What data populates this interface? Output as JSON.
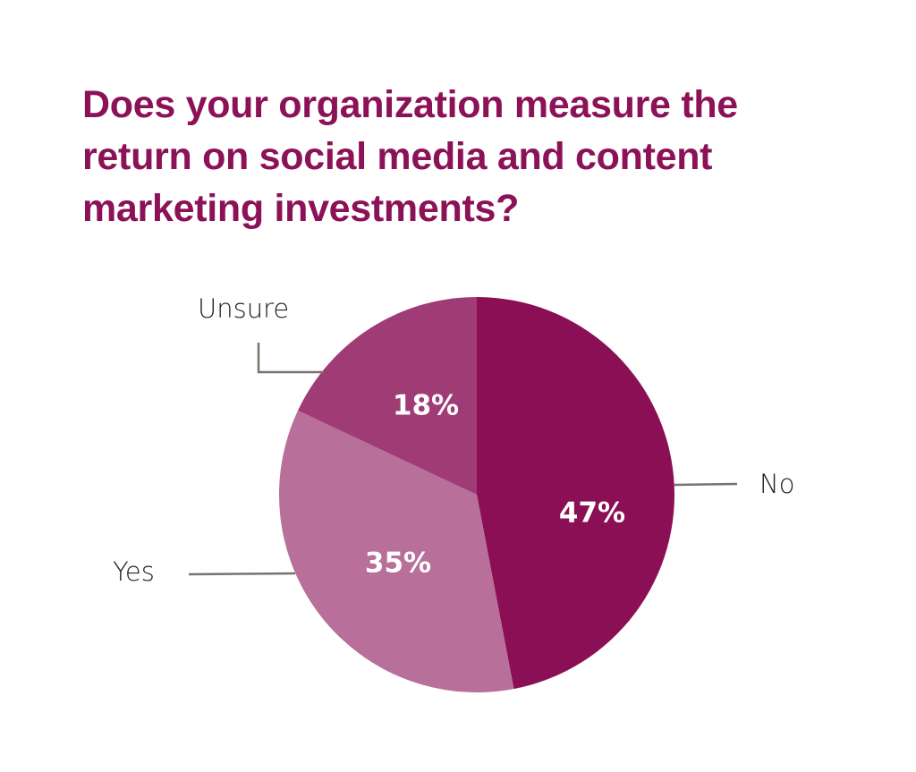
{
  "chart_data": {
    "type": "pie",
    "title": "Does your organization measure the return on social media and content marketing investments?",
    "title_lines": [
      "Does your organization measure the",
      "return on social media and content",
      "marketing investments?"
    ],
    "slices": [
      {
        "label": "No",
        "value": 47,
        "display": "47%",
        "color": "#8B0F55"
      },
      {
        "label": "Yes",
        "value": 35,
        "display": "35%",
        "color": "#B86F9A"
      },
      {
        "label": "Unsure",
        "value": 18,
        "display": "18%",
        "color": "#A03C75"
      }
    ],
    "start_angle_deg": 0,
    "direction": "clockwise",
    "legend_position": "callout labels"
  },
  "colors": {
    "title": "#8C1257",
    "leader_line": "#7a726c",
    "label_text": "#222222",
    "value_text": "#ffffff"
  }
}
